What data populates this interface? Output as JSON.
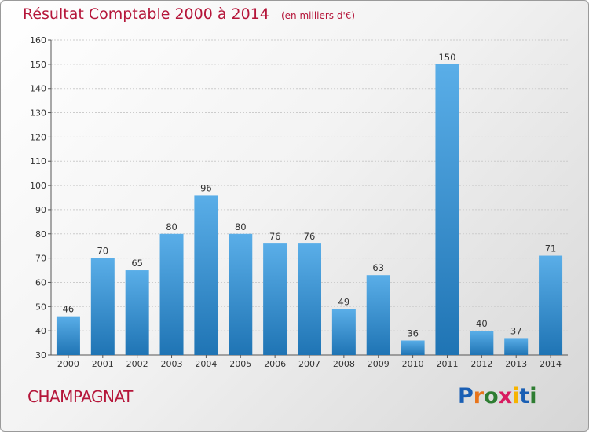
{
  "title": "Résultat Comptable 2000 à 2014",
  "subtitle": "(en milliers d'€)",
  "commune": "CHAMPAGNAT",
  "logo": {
    "text": "Proxiti",
    "colors": [
      "#1a5fb4",
      "#e8741a",
      "#2e7d32",
      "#d81b60",
      "#f6b300",
      "#1a5fb4",
      "#2e7d32"
    ]
  },
  "colors": {
    "title": "#b5163a",
    "bar_top": "#5aaee8",
    "bar_bottom": "#1f74b4",
    "grid": "#cccccc"
  },
  "chart_data": {
    "type": "bar",
    "categories": [
      "2000",
      "2001",
      "2002",
      "2003",
      "2004",
      "2005",
      "2006",
      "2007",
      "2008",
      "2009",
      "2010",
      "2011",
      "2012",
      "2013",
      "2014"
    ],
    "values": [
      46,
      70,
      65,
      80,
      96,
      80,
      76,
      76,
      49,
      63,
      36,
      150,
      40,
      37,
      71
    ],
    "ylim": [
      30,
      160
    ],
    "yticks": [
      30,
      40,
      50,
      60,
      70,
      80,
      90,
      100,
      110,
      120,
      130,
      140,
      150,
      160
    ],
    "grid": true,
    "data_labels": true
  }
}
